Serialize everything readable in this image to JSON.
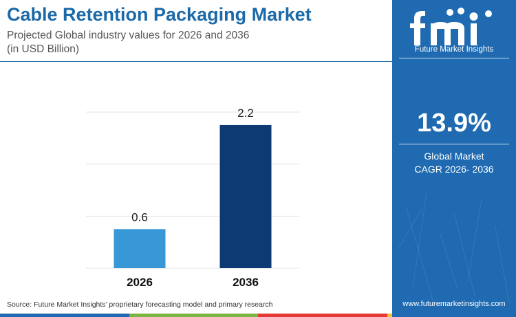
{
  "header": {
    "title": "Cable Retention Packaging Market",
    "subtitle_line1": "Projected Global industry values for 2026 and 2036",
    "subtitle_line2": "(in USD Billion)"
  },
  "footer": {
    "source": "Source: Future Market Insights’ proprietary forecasting model and primary research",
    "stripe_colors": [
      "#1f6ab0",
      "#7cb342",
      "#e53935",
      "#fbc02d"
    ]
  },
  "sidebar": {
    "logo_text": "Future Market Insights",
    "cagr_value": "13.9%",
    "cagr_label_line1": "Global Market",
    "cagr_label_line2": "CAGR 2026- 2036",
    "website": "www.futuremarketinsights.com",
    "background_color": "#1f6ab0"
  },
  "chart_data": {
    "type": "bar",
    "categories": [
      "2026",
      "2036"
    ],
    "values": [
      0.6,
      2.2
    ],
    "value_labels": [
      "0.6",
      "2.2"
    ],
    "bar_colors": [
      "#3897d7",
      "#0d3a73"
    ],
    "ylim": [
      0,
      2.4
    ],
    "gridlines": [
      0.8,
      1.6,
      2.4
    ],
    "grid": true,
    "xlabel": "",
    "ylabel": ""
  }
}
